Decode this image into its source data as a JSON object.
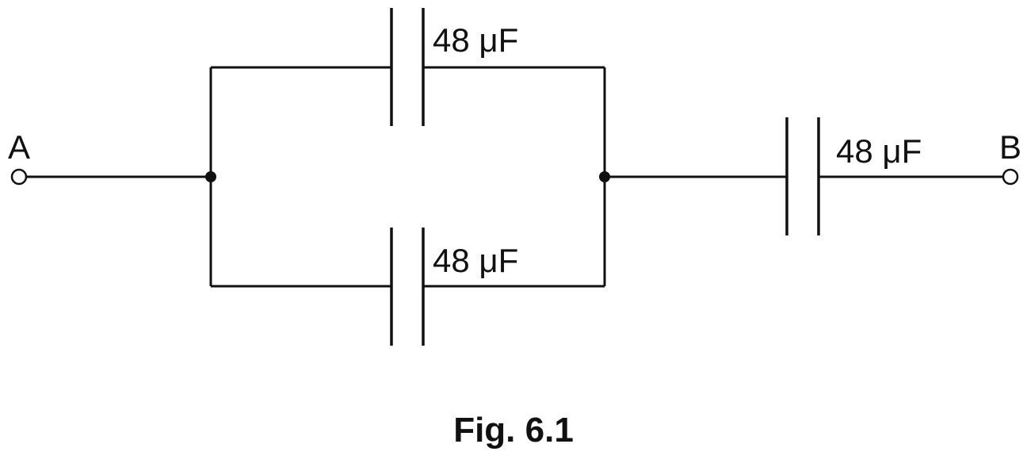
{
  "terminals": {
    "a_label": "A",
    "b_label": "B"
  },
  "capacitors": {
    "top_label": "48 μF",
    "bottom_label": "48 μF",
    "series_label": "48 μF"
  },
  "caption": "Fig. 6.1",
  "colors": {
    "ink": "#111111",
    "background": "#ffffff"
  }
}
